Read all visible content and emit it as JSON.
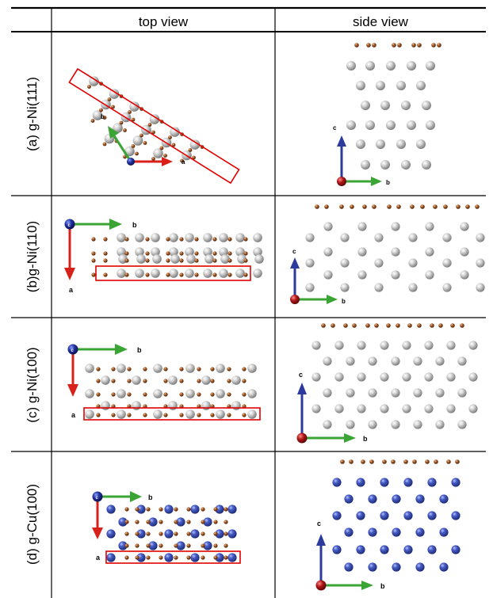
{
  "table": {
    "headers": [
      "top view",
      "side view"
    ],
    "rows": [
      {
        "label": "(a) g-Ni(111)",
        "top_axes": [
          "a",
          "b",
          ""
        ],
        "side_axes": [
          "c",
          "b",
          ""
        ]
      },
      {
        "label": "(b)g-Ni(110)",
        "top_axes": [
          "b",
          "a",
          "c"
        ],
        "side_axes": [
          "c",
          "b",
          ""
        ]
      },
      {
        "label": "(c) g-Ni(100)",
        "top_axes": [
          "b",
          "a",
          "c"
        ],
        "side_axes": [
          "c",
          "b",
          ""
        ]
      },
      {
        "label": "(d) g-Cu(100)",
        "top_axes": [
          "b",
          "a",
          "c"
        ],
        "side_axes": [
          "c",
          "b",
          ""
        ]
      }
    ]
  },
  "colors": {
    "nickel": "#b4b4b4",
    "copper": "#3a4fb3",
    "carbon": "#8b4a22",
    "frame": "#e00000",
    "axis_red": "#d8211b",
    "axis_green": "#3aa534",
    "axis_blue": "#2b3a9c",
    "axis_origin_red": "#9c1414"
  }
}
